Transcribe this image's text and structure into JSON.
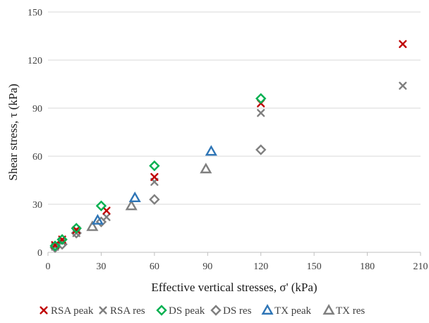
{
  "chart_data": {
    "type": "scatter",
    "title": "",
    "xlabel": "Effective vertical stresses, σ' (kPa)",
    "ylabel": "Shear stress, τ (kPa)",
    "xlim": [
      0,
      210
    ],
    "ylim": [
      0,
      150
    ],
    "xticks": [
      0,
      30,
      60,
      90,
      120,
      150,
      180,
      210
    ],
    "yticks": [
      0,
      30,
      60,
      90,
      120,
      150
    ],
    "grid": "horizontal",
    "legend_position": "bottom",
    "series": [
      {
        "name": "RSA peak",
        "marker": "x",
        "color": "#C00000",
        "x": [
          4,
          8,
          16,
          33,
          60,
          120,
          200
        ],
        "y": [
          4.5,
          8,
          14,
          26,
          47,
          93,
          130
        ]
      },
      {
        "name": "RSA res",
        "marker": "x",
        "color": "#7F7F7F",
        "x": [
          4,
          8,
          16,
          33,
          60,
          120,
          200
        ],
        "y": [
          3.5,
          6.5,
          12,
          22,
          44,
          87,
          104
        ]
      },
      {
        "name": "DS peak",
        "marker": "diamond",
        "color": "#00B050",
        "x": [
          4,
          8,
          16,
          30,
          60,
          120
        ],
        "y": [
          4,
          8,
          15,
          29,
          54,
          96
        ]
      },
      {
        "name": "DS res",
        "marker": "diamond",
        "color": "#7F7F7F",
        "x": [
          4,
          8,
          16,
          30,
          60,
          120
        ],
        "y": [
          3,
          5,
          12,
          19,
          33,
          64
        ]
      },
      {
        "name": "TX peak",
        "marker": "triangle",
        "color": "#2E75B6",
        "x": [
          28,
          49,
          92
        ],
        "y": [
          20,
          34,
          63
        ]
      },
      {
        "name": "TX res",
        "marker": "triangle",
        "color": "#7F7F7F",
        "x": [
          25,
          47,
          89
        ],
        "y": [
          16,
          29,
          52
        ]
      }
    ]
  }
}
